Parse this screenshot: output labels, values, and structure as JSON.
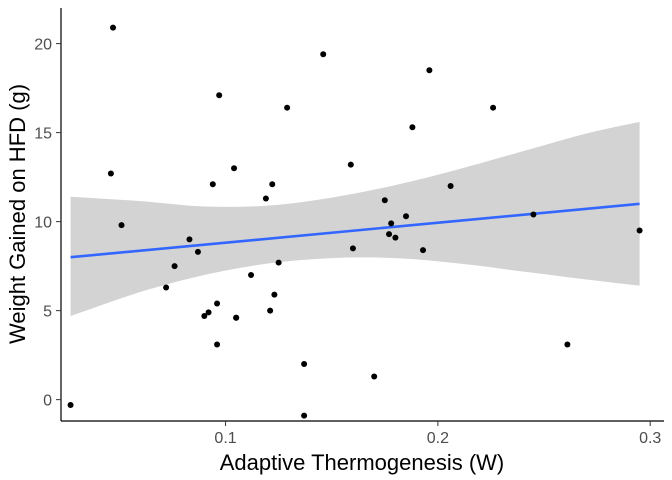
{
  "chart_data": {
    "type": "scatter",
    "title": "",
    "xlabel": "Adaptive Thermogenesis (W)",
    "ylabel": "Weight Gained on HFD (g)",
    "xlim": [
      0.0225,
      0.3065
    ],
    "ylim": [
      -1.2,
      22.0
    ],
    "x_ticks": [
      {
        "value": 0.1,
        "label": "0.1"
      },
      {
        "value": 0.2,
        "label": "0.2"
      },
      {
        "value": 0.3,
        "label": "0.3"
      }
    ],
    "y_ticks": [
      {
        "value": 0,
        "label": "0"
      },
      {
        "value": 5,
        "label": "5"
      },
      {
        "value": 10,
        "label": "10"
      },
      {
        "value": 15,
        "label": "15"
      },
      {
        "value": 20,
        "label": "20"
      }
    ],
    "grid": false,
    "legend": "none",
    "point_color": "#000000",
    "fit_color": "#3366ff",
    "band_color": "#d3d3d3",
    "points": [
      {
        "x": 0.027,
        "y": -0.3
      },
      {
        "x": 0.046,
        "y": 12.7
      },
      {
        "x": 0.047,
        "y": 20.9
      },
      {
        "x": 0.051,
        "y": 9.8
      },
      {
        "x": 0.072,
        "y": 6.3
      },
      {
        "x": 0.076,
        "y": 7.5
      },
      {
        "x": 0.083,
        "y": 9.0
      },
      {
        "x": 0.087,
        "y": 8.3
      },
      {
        "x": 0.09,
        "y": 4.7
      },
      {
        "x": 0.092,
        "y": 4.9
      },
      {
        "x": 0.094,
        "y": 12.1
      },
      {
        "x": 0.096,
        "y": 3.1
      },
      {
        "x": 0.096,
        "y": 5.4
      },
      {
        "x": 0.097,
        "y": 17.1
      },
      {
        "x": 0.104,
        "y": 13.0
      },
      {
        "x": 0.105,
        "y": 4.6
      },
      {
        "x": 0.105,
        "y": 4.6
      },
      {
        "x": 0.112,
        "y": 7.0
      },
      {
        "x": 0.119,
        "y": 11.3
      },
      {
        "x": 0.121,
        "y": 5.0
      },
      {
        "x": 0.122,
        "y": 12.1
      },
      {
        "x": 0.123,
        "y": 5.9
      },
      {
        "x": 0.125,
        "y": 7.7
      },
      {
        "x": 0.129,
        "y": 16.4
      },
      {
        "x": 0.137,
        "y": 2.0
      },
      {
        "x": 0.137,
        "y": -0.9
      },
      {
        "x": 0.146,
        "y": 19.4
      },
      {
        "x": 0.159,
        "y": 13.2
      },
      {
        "x": 0.16,
        "y": 8.5
      },
      {
        "x": 0.17,
        "y": 1.3
      },
      {
        "x": 0.175,
        "y": 11.2
      },
      {
        "x": 0.177,
        "y": 9.3
      },
      {
        "x": 0.178,
        "y": 9.9
      },
      {
        "x": 0.18,
        "y": 9.1
      },
      {
        "x": 0.185,
        "y": 10.3
      },
      {
        "x": 0.188,
        "y": 15.3
      },
      {
        "x": 0.193,
        "y": 8.4
      },
      {
        "x": 0.196,
        "y": 18.5
      },
      {
        "x": 0.206,
        "y": 12.0
      },
      {
        "x": 0.226,
        "y": 16.4
      },
      {
        "x": 0.245,
        "y": 10.4
      },
      {
        "x": 0.261,
        "y": 3.1
      },
      {
        "x": 0.295,
        "y": 9.5
      }
    ],
    "fit": {
      "line": [
        {
          "x": 0.027,
          "y": 8.0
        },
        {
          "x": 0.295,
          "y": 11.0
        }
      ],
      "band_upper": [
        {
          "x": 0.027,
          "y": 11.4
        },
        {
          "x": 0.06,
          "y": 11.15
        },
        {
          "x": 0.09,
          "y": 10.85
        },
        {
          "x": 0.12,
          "y": 10.9
        },
        {
          "x": 0.15,
          "y": 11.35
        },
        {
          "x": 0.18,
          "y": 12.05
        },
        {
          "x": 0.21,
          "y": 12.95
        },
        {
          "x": 0.24,
          "y": 13.95
        },
        {
          "x": 0.27,
          "y": 14.95
        },
        {
          "x": 0.295,
          "y": 15.6
        }
      ],
      "band_lower": [
        {
          "x": 0.027,
          "y": 4.7
        },
        {
          "x": 0.06,
          "y": 6.05
        },
        {
          "x": 0.09,
          "y": 7.0
        },
        {
          "x": 0.12,
          "y": 7.65
        },
        {
          "x": 0.15,
          "y": 7.95
        },
        {
          "x": 0.18,
          "y": 7.95
        },
        {
          "x": 0.21,
          "y": 7.65
        },
        {
          "x": 0.24,
          "y": 7.2
        },
        {
          "x": 0.27,
          "y": 6.75
        },
        {
          "x": 0.295,
          "y": 6.4
        }
      ]
    }
  }
}
